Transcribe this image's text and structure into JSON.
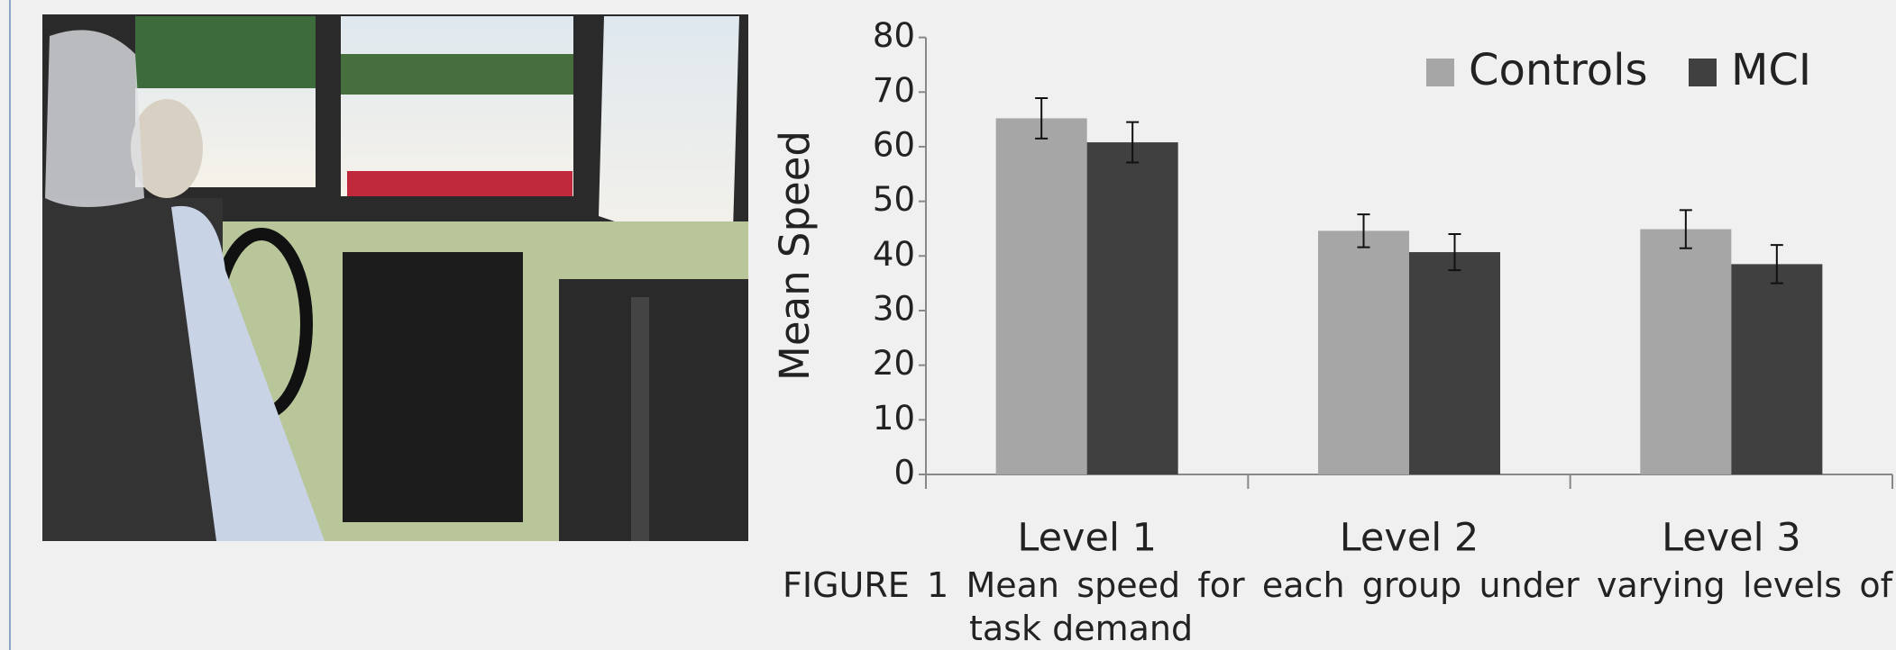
{
  "chart_data": {
    "type": "bar",
    "y_label": "Mean Speed",
    "categories": [
      "Level 1",
      "Level 2",
      "Level 3"
    ],
    "series": [
      {
        "name": "Controls",
        "color": "#a6a6a6",
        "values": [
          65.2,
          44.6,
          44.9
        ],
        "errors": [
          3.7,
          3.0,
          3.5
        ]
      },
      {
        "name": "MCI",
        "color": "#404040",
        "values": [
          60.8,
          40.7,
          38.5
        ],
        "errors": [
          3.7,
          3.3,
          3.5
        ]
      }
    ],
    "ylim": [
      0,
      80
    ],
    "yticks": [
      0,
      10,
      20,
      30,
      40,
      50,
      60,
      70,
      80
    ],
    "grid": false,
    "legend": "top-right"
  },
  "caption": {
    "label": "FIGURE 1",
    "text": "Mean speed for each group under varying levels of task demand"
  }
}
